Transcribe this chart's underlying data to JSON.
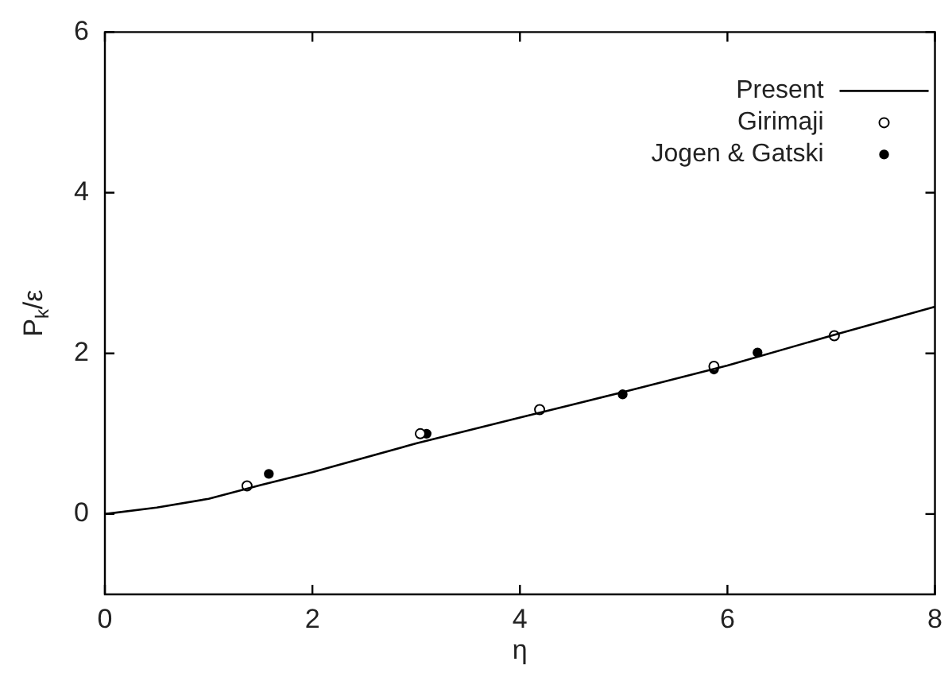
{
  "chart_data": {
    "type": "line",
    "xlabel": "η",
    "ylabel": "P$_{k}$/ε",
    "xlim": [
      0,
      8
    ],
    "xticks": [
      0,
      2,
      4,
      6,
      8
    ],
    "ylim": [
      -1,
      6
    ],
    "yticks": [
      0,
      2,
      4,
      6
    ],
    "grid": false,
    "legend": "top right",
    "series": [
      {
        "name": "Present",
        "color": "#000000",
        "marker": "none",
        "line_style": "solid",
        "x": [
          0,
          0.5,
          1,
          1.5,
          2,
          3,
          4,
          5,
          6,
          7,
          8
        ],
        "values": [
          0,
          0.08,
          0.19,
          0.36,
          0.52,
          0.88,
          1.2,
          1.52,
          1.85,
          2.22,
          2.58
        ]
      },
      {
        "name": "Girimaji",
        "type": "scatter",
        "color": "#000000",
        "marker": "circle",
        "x": [
          1.37,
          3.04,
          4.19,
          5.87,
          7.03
        ],
        "values": [
          0.35,
          1.0,
          1.3,
          1.84,
          2.22
        ]
      },
      {
        "name": "Jogen & Gatski",
        "type": "scatter",
        "color": "#000000",
        "marker": "circle",
        "x": [
          1.58,
          3.1,
          4.99,
          5.87,
          6.29
        ],
        "values": [
          0.5,
          1.0,
          1.49,
          1.8,
          2.01
        ]
      }
    ]
  }
}
